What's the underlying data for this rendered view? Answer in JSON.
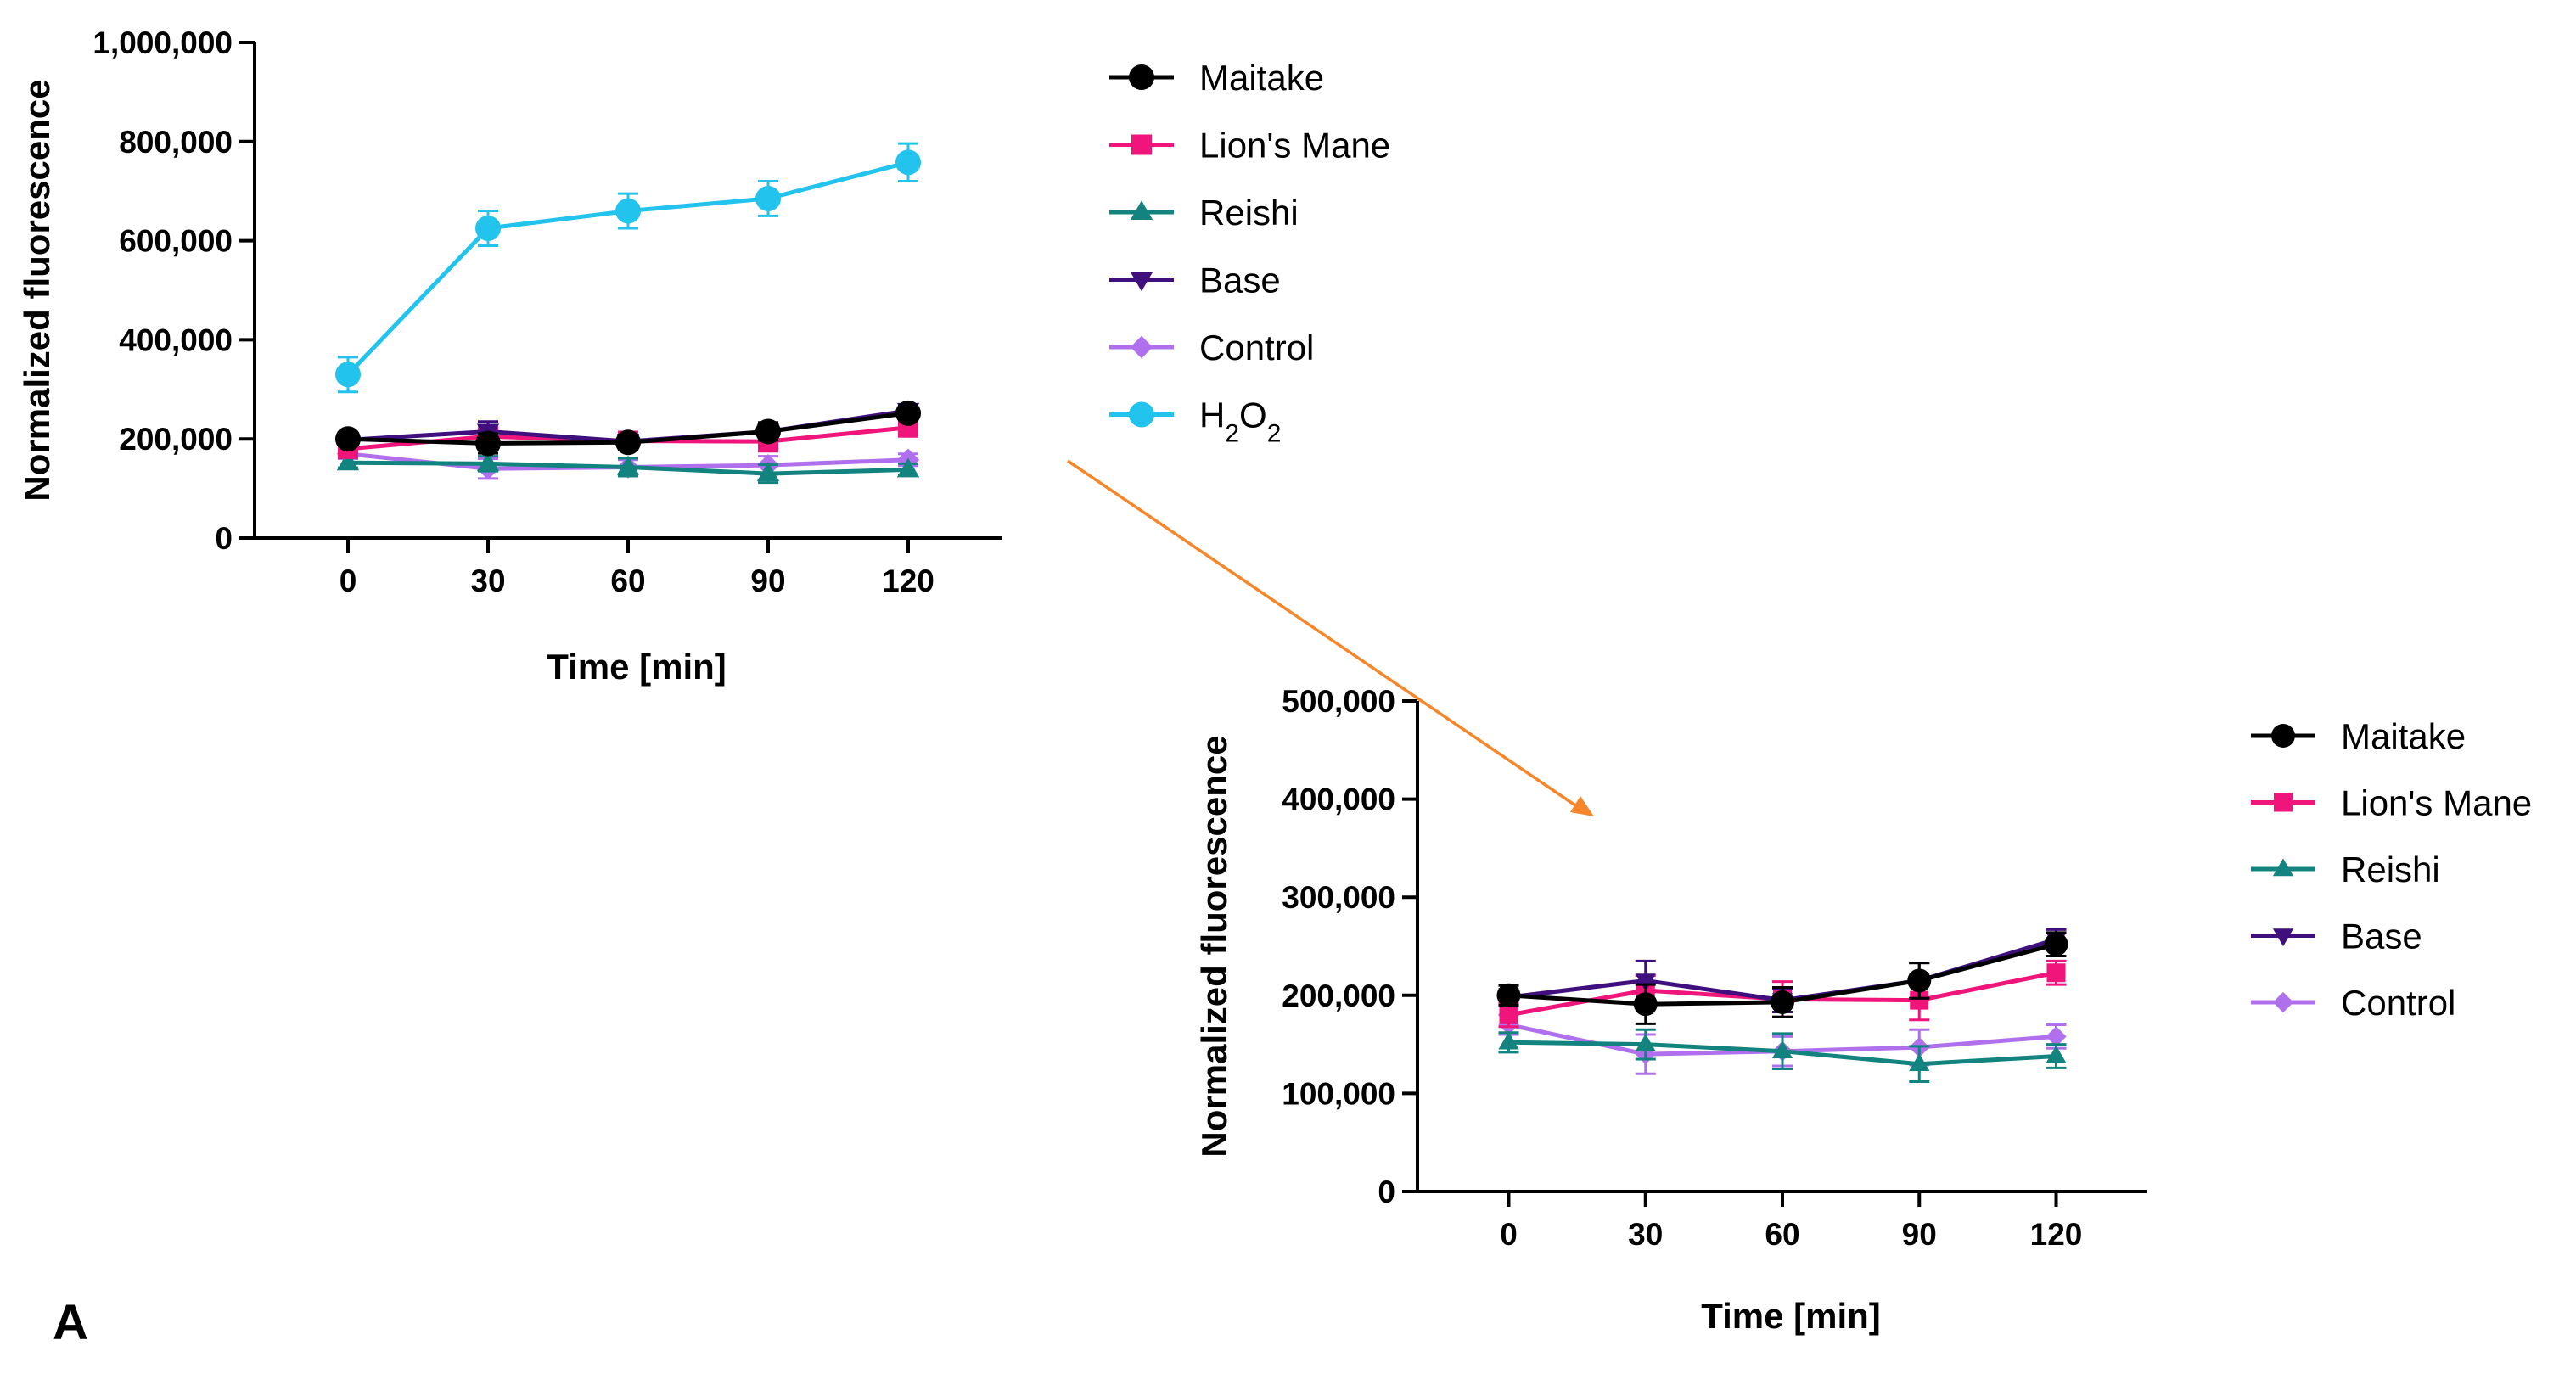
{
  "panel_label": "A",
  "colors": {
    "Maitake": "#000000",
    "Lion's Mane": "#f0157a",
    "Reishi": "#13837f",
    "Base": "#3f0f7e",
    "Control": "#b070ee",
    "H2O2": "#22c3ec",
    "arrow": "#f5862a"
  },
  "chart_data": [
    {
      "id": "main",
      "type": "line",
      "xlabel": "Time [min]",
      "ylabel": "Normalized fluorescence",
      "x": [
        0,
        30,
        60,
        90,
        120
      ],
      "xlim": [
        -20,
        140
      ],
      "ylim": [
        0,
        1000000
      ],
      "yticks": [
        0,
        200000,
        400000,
        600000,
        800000,
        1000000
      ],
      "ytick_labels": [
        "0",
        "200,000",
        "400,000",
        "600,000",
        "800,000",
        "1,000,000"
      ],
      "xtick_labels": [
        "0",
        "30",
        "60",
        "90",
        "120"
      ],
      "legend": [
        "Maitake",
        "Lion's Mane",
        "Reishi",
        "Base",
        "Control",
        "H2O2"
      ],
      "legend_html": {
        "H2O2": "H<tspan baseline-shift=\"sub\" font-size=\"30\">2</tspan>O<tspan baseline-shift=\"sub\" font-size=\"30\">2</tspan>"
      },
      "legend_position": "right",
      "series": [
        {
          "name": "Control",
          "marker": "diamond",
          "values": [
            170000,
            140000,
            143000,
            147000,
            158000
          ],
          "errors": [
            10000,
            20000,
            15000,
            18000,
            12000
          ]
        },
        {
          "name": "Reishi",
          "marker": "triangle-up",
          "values": [
            152000,
            150000,
            143000,
            130000,
            138000
          ],
          "errors": [
            10000,
            15000,
            18000,
            18000,
            12000
          ]
        },
        {
          "name": "Lion's Mane",
          "marker": "square",
          "values": [
            180000,
            205000,
            196000,
            195000,
            223000
          ],
          "errors": [
            12000,
            15000,
            18000,
            20000,
            12000
          ]
        },
        {
          "name": "Base",
          "marker": "triangle-down",
          "values": [
            198000,
            215000,
            195000,
            215000,
            257000
          ],
          "errors": [
            8000,
            20000,
            12000,
            18000,
            10000
          ]
        },
        {
          "name": "Maitake",
          "marker": "circle",
          "values": [
            200000,
            191000,
            193000,
            215000,
            252000
          ],
          "errors": [
            10000,
            20000,
            15000,
            18000,
            12000
          ]
        },
        {
          "name": "H2O2",
          "marker": "circle",
          "values": [
            330000,
            625000,
            660000,
            685000,
            758000
          ],
          "errors": [
            35000,
            35000,
            35000,
            35000,
            38000
          ]
        }
      ]
    },
    {
      "id": "zoom",
      "type": "line",
      "xlabel": "Time [min]",
      "ylabel": "Normalized fluorescence",
      "x": [
        0,
        30,
        60,
        90,
        120
      ],
      "xlim": [
        -20,
        140
      ],
      "ylim": [
        0,
        500000
      ],
      "yticks": [
        0,
        100000,
        200000,
        300000,
        400000,
        500000
      ],
      "ytick_labels": [
        "0",
        "100,000",
        "200,000",
        "300,000",
        "400,000",
        "500,000"
      ],
      "xtick_labels": [
        "0",
        "30",
        "60",
        "90",
        "120"
      ],
      "legend": [
        "Maitake",
        "Lion's Mane",
        "Reishi",
        "Base",
        "Control"
      ],
      "legend_position": "right",
      "series": [
        {
          "name": "Control",
          "marker": "diamond",
          "values": [
            170000,
            140000,
            143000,
            147000,
            158000
          ],
          "errors": [
            10000,
            20000,
            15000,
            18000,
            12000
          ]
        },
        {
          "name": "Reishi",
          "marker": "triangle-up",
          "values": [
            152000,
            150000,
            143000,
            130000,
            138000
          ],
          "errors": [
            10000,
            15000,
            18000,
            18000,
            12000
          ]
        },
        {
          "name": "Lion's Mane",
          "marker": "square",
          "values": [
            180000,
            205000,
            196000,
            195000,
            223000
          ],
          "errors": [
            12000,
            15000,
            18000,
            20000,
            12000
          ]
        },
        {
          "name": "Base",
          "marker": "triangle-down",
          "values": [
            198000,
            215000,
            195000,
            215000,
            257000
          ],
          "errors": [
            8000,
            20000,
            12000,
            18000,
            10000
          ]
        },
        {
          "name": "Maitake",
          "marker": "circle",
          "values": [
            200000,
            191000,
            193000,
            215000,
            252000
          ],
          "errors": [
            10000,
            20000,
            15000,
            18000,
            12000
          ]
        }
      ]
    }
  ]
}
